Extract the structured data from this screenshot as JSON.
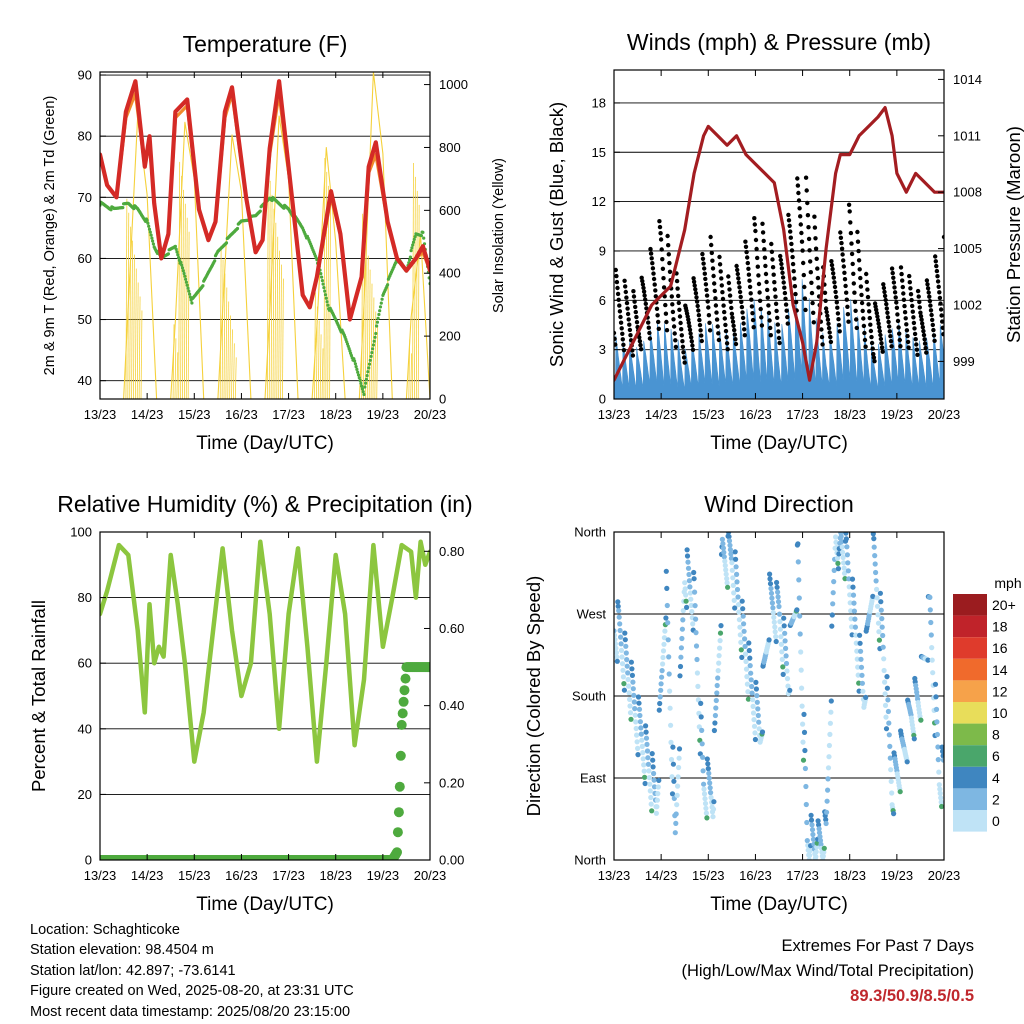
{
  "x_tick_labels": [
    "13/23",
    "14/23",
    "15/23",
    "16/23",
    "17/23",
    "18/23",
    "19/23",
    "20/23"
  ],
  "charts": {
    "temperature": {
      "title": "Temperature (F)",
      "xlabel": "Time (Day/UTC)",
      "ylabel_left": "2m & 9m T (Red, Orange) & 2m Td (Green)",
      "ylabel_right": "Solar Insolation (Yellow)",
      "yticks_left": [
        "40",
        "50",
        "60",
        "70",
        "80",
        "90"
      ],
      "yticks_right": [
        "0",
        "200",
        "400",
        "600",
        "800",
        "1000"
      ]
    },
    "winds": {
      "title": "Winds (mph) & Pressure (mb)",
      "xlabel": "Time (Day/UTC)",
      "ylabel_left": "Sonic Wind & Gust (Blue, Black)",
      "ylabel_right": "Station Pressure (Maroon)",
      "yticks_left": [
        "0",
        "3",
        "6",
        "9",
        "12",
        "15",
        "18"
      ],
      "yticks_right": [
        "999",
        "1002",
        "1005",
        "1008",
        "1011",
        "1014"
      ]
    },
    "humidity": {
      "title": "Relative Humidity (%) & Precipitation (in)",
      "xlabel": "Time (Day/UTC)",
      "ylabel_left": "Percent & Total Rainfall",
      "yticks_left": [
        "0",
        "20",
        "40",
        "60",
        "80",
        "100"
      ],
      "yticks_right": [
        "0.00",
        "0.20",
        "0.40",
        "0.60",
        "0.80"
      ]
    },
    "direction": {
      "title": "Wind Direction",
      "xlabel": "Time (Day/UTC)",
      "ylabel_left": "Direction (Colored By Speed)",
      "yticks_left": [
        "North",
        "East",
        "South",
        "West",
        "North"
      ],
      "legend_title": "mph",
      "legend_labels": [
        "20+",
        "18",
        "16",
        "14",
        "12",
        "10",
        "8",
        "6",
        "4",
        "2",
        "0"
      ],
      "legend_colors": [
        "#9b1c1f",
        "#c0232a",
        "#df3b2c",
        "#f06a2c",
        "#f6a24a",
        "#e8dd5a",
        "#7dba4a",
        "#4aa66b",
        "#3f86c0",
        "#7eb7e2",
        "#bfe3f6"
      ]
    }
  },
  "chart_data": [
    {
      "type": "line",
      "title": "Temperature (F)",
      "xlabel": "Time (Day/UTC)",
      "ylabel": "2m & 9m T (Red, Orange) & 2m Td (Green)",
      "y2label": "Solar Insolation (Yellow)",
      "x_unit": "days since 13/23",
      "ylim": [
        37,
        90.5
      ],
      "y2lim": [
        0,
        1040
      ],
      "series": [
        {
          "name": "2m T",
          "color": "#d42a26",
          "axis": "left",
          "x": [
            0,
            0.15,
            0.35,
            0.55,
            0.75,
            0.95,
            1.05,
            1.15,
            1.3,
            1.45,
            1.6,
            1.85,
            2.1,
            2.3,
            2.45,
            2.65,
            2.8,
            3.1,
            3.3,
            3.45,
            3.6,
            3.8,
            4.1,
            4.3,
            4.45,
            4.6,
            4.9,
            5.1,
            5.3,
            5.55,
            5.7,
            5.85,
            6.1,
            6.3,
            6.5,
            6.7,
            6.85,
            7.0
          ],
          "y": [
            77,
            72,
            70,
            84,
            89,
            75,
            80,
            69,
            60,
            64,
            84,
            86,
            68,
            63,
            66,
            84,
            88,
            70,
            61,
            63,
            78,
            89,
            68,
            54,
            52,
            57,
            71,
            64,
            50,
            57,
            75,
            79,
            66,
            60,
            58,
            60,
            62,
            58
          ]
        },
        {
          "name": "9m T",
          "color": "#f08a2c",
          "axis": "left",
          "x": [
            0,
            0.15,
            0.35,
            0.55,
            0.75,
            0.95,
            1.05,
            1.15,
            1.3,
            1.45,
            1.6,
            1.85,
            2.1,
            2.3,
            2.45,
            2.65,
            2.8,
            3.1,
            3.3,
            3.45,
            3.6,
            3.8,
            4.1,
            4.3,
            4.45,
            4.6,
            4.9,
            5.1,
            5.3,
            5.55,
            5.7,
            5.85,
            6.1,
            6.3,
            6.5,
            6.7,
            6.85,
            7.0
          ],
          "y": [
            77,
            72,
            70,
            83,
            87,
            75,
            79,
            69,
            60,
            64,
            83,
            85,
            68,
            63,
            66,
            83,
            87,
            70,
            61,
            63,
            77,
            87,
            68,
            54,
            52,
            57,
            70,
            64,
            50,
            57,
            74,
            77,
            66,
            60,
            58,
            60,
            61,
            58
          ]
        },
        {
          "name": "2m Td",
          "color": "#4eaa3e",
          "axis": "left",
          "x": [
            0,
            0.3,
            0.6,
            0.8,
            1.0,
            1.15,
            1.3,
            1.45,
            1.6,
            1.8,
            1.95,
            2.2,
            2.5,
            2.8,
            3.0,
            3.3,
            3.6,
            3.8,
            4.0,
            4.3,
            4.6,
            4.85,
            5.0,
            5.2,
            5.4,
            5.6,
            5.8,
            6.0,
            6.3,
            6.5,
            6.7,
            6.85,
            7.0
          ],
          "y": [
            69,
            68,
            69,
            68,
            66,
            62,
            60,
            61,
            62,
            57,
            53,
            56,
            61,
            64,
            66,
            67,
            70,
            69,
            68,
            65,
            60,
            52,
            50,
            47,
            43,
            38,
            46,
            54,
            60,
            58,
            64,
            64,
            56
          ]
        },
        {
          "name": "Solar Insolation",
          "color": "#f5d13b",
          "axis": "right",
          "x": [
            0.2,
            0.5,
            0.6,
            0.8,
            1.0,
            1.2,
            1.5,
            1.6,
            1.8,
            2.0,
            2.2,
            2.5,
            2.6,
            2.8,
            3.0,
            3.2,
            3.5,
            3.6,
            3.8,
            4.0,
            4.2,
            4.5,
            4.6,
            4.8,
            5.0,
            5.2,
            5.5,
            5.6,
            5.8,
            6.0,
            6.2,
            6.5,
            6.6,
            6.8,
            7.0
          ],
          "y": [
            0,
            0,
            300,
            900,
            650,
            0,
            0,
            250,
            880,
            700,
            0,
            0,
            280,
            840,
            660,
            0,
            0,
            270,
            900,
            700,
            0,
            0,
            230,
            800,
            500,
            0,
            0,
            300,
            1040,
            780,
            0,
            0,
            260,
            520,
            0
          ]
        }
      ]
    },
    {
      "type": "line",
      "title": "Winds (mph) & Pressure (mb)",
      "xlabel": "Time (Day/UTC)",
      "ylabel": "Sonic Wind & Gust (Blue, Black)",
      "y2label": "Station Pressure (Maroon)",
      "x_unit": "days since 13/23",
      "ylim": [
        0,
        20
      ],
      "y2lim": [
        997,
        1014.5
      ],
      "series": [
        {
          "name": "Sonic Wind",
          "color": "#4a94d2",
          "axis": "left",
          "x": [
            0,
            0.5,
            1.0,
            1.5,
            2.0,
            2.5,
            3.0,
            3.5,
            4.0,
            4.5,
            5.0,
            5.5,
            6.0,
            6.5,
            7.0
          ],
          "y": [
            2.5,
            2.0,
            3.2,
            2.0,
            3.0,
            2.5,
            4.0,
            2.8,
            4.6,
            2.2,
            4.0,
            2.0,
            3.0,
            2.2,
            3.0
          ]
        },
        {
          "name": "Gust",
          "color": "#000000",
          "axis": "left",
          "x": [
            0,
            0.5,
            1.0,
            1.5,
            2.0,
            2.5,
            3.0,
            3.5,
            4.0,
            4.5,
            5.0,
            5.5,
            6.0,
            6.5,
            7.0
          ],
          "y": [
            5.5,
            4.5,
            8.0,
            4.0,
            7.0,
            5.0,
            8.0,
            6.0,
            10.5,
            5.0,
            8.5,
            4.0,
            6.0,
            4.5,
            7.0
          ]
        },
        {
          "name": "Station Pressure",
          "color": "#a31d21",
          "axis": "right",
          "x": [
            0,
            0.2,
            0.4,
            0.6,
            0.8,
            1.0,
            1.2,
            1.5,
            1.7,
            1.9,
            2.0,
            2.2,
            2.4,
            2.6,
            2.8,
            3.0,
            3.2,
            3.4,
            3.6,
            3.8,
            4.0,
            4.15,
            4.3,
            4.5,
            4.7,
            4.8,
            5.0,
            5.2,
            5.4,
            5.6,
            5.75,
            5.9,
            6.0,
            6.2,
            6.4,
            6.6,
            6.8,
            7.0
          ],
          "y": [
            998,
            999,
            1000,
            1001,
            1002,
            1002.5,
            1003,
            1006,
            1009,
            1011,
            1011.5,
            1011,
            1010.5,
            1011,
            1010,
            1009.5,
            1009,
            1008.5,
            1006,
            1002,
            1000,
            998,
            1000,
            1005,
            1009,
            1010,
            1010,
            1011,
            1011.5,
            1012,
            1012.5,
            1011,
            1009,
            1008,
            1009,
            1008.5,
            1008,
            1008
          ]
        }
      ]
    },
    {
      "type": "line",
      "title": "Relative Humidity (%) & Precipitation (in)",
      "xlabel": "Time (Day/UTC)",
      "ylabel": "Percent & Total Rainfall",
      "x_unit": "days since 13/23",
      "ylim": [
        0,
        100
      ],
      "y2lim": [
        0,
        0.85
      ],
      "series": [
        {
          "name": "Relative Humidity",
          "color": "#8cc63f",
          "axis": "left",
          "x": [
            0,
            0.15,
            0.4,
            0.6,
            0.8,
            0.95,
            1.05,
            1.15,
            1.25,
            1.35,
            1.5,
            1.65,
            1.8,
            2.0,
            2.2,
            2.4,
            2.6,
            2.8,
            3.0,
            3.2,
            3.4,
            3.6,
            3.8,
            4.0,
            4.2,
            4.4,
            4.6,
            4.8,
            5.0,
            5.2,
            5.4,
            5.6,
            5.8,
            6.0,
            6.2,
            6.4,
            6.6,
            6.7,
            6.8,
            6.9,
            7.0
          ],
          "y": [
            75,
            82,
            96,
            93,
            70,
            45,
            78,
            60,
            65,
            62,
            93,
            78,
            60,
            30,
            45,
            70,
            95,
            70,
            50,
            60,
            97,
            75,
            40,
            75,
            95,
            65,
            30,
            60,
            93,
            75,
            35,
            55,
            96,
            65,
            80,
            96,
            94,
            80,
            97,
            90,
            94
          ]
        },
        {
          "name": "Total Precipitation",
          "color": "#4eaa3e",
          "axis": "right",
          "x": [
            0,
            6.0,
            6.2,
            6.3,
            6.35,
            6.4,
            6.5,
            7.0
          ],
          "y": [
            0,
            0,
            0,
            0.02,
            0.15,
            0.35,
            0.5,
            0.5
          ]
        }
      ]
    },
    {
      "type": "scatter",
      "title": "Wind Direction",
      "xlabel": "Time (Day/UTC)",
      "ylabel": "Direction (Colored By Speed)",
      "x_unit": "days since 13/23",
      "y_categories": [
        "North",
        "East",
        "South",
        "West",
        "North"
      ],
      "ylim": [
        0,
        360
      ],
      "color_legend_title": "mph",
      "series": [
        {
          "name": "Direction",
          "color": "#7eb7e2",
          "x": [
            0.1,
            0.3,
            0.5,
            0.7,
            0.9,
            1.1,
            1.3,
            1.5,
            1.7,
            1.9,
            2.1,
            2.3,
            2.5,
            2.7,
            2.9,
            3.1,
            3.3,
            3.5,
            3.7,
            3.9,
            4.1,
            4.3,
            4.5,
            4.7,
            4.9,
            5.1,
            5.3,
            5.5,
            5.7,
            5.9,
            6.1,
            6.3,
            6.5,
            6.7,
            6.9
          ],
          "y": [
            250,
            200,
            150,
            110,
            60,
            300,
            20,
            320,
            280,
            80,
            70,
            330,
            330,
            260,
            190,
            140,
            280,
            270,
            200,
            320,
            20,
            10,
            20,
            360,
            340,
            260,
            180,
            330,
            240,
            80,
            110,
            160,
            180,
            270,
            90
          ]
        }
      ]
    }
  ],
  "meta": {
    "location": "Location: Schaghticoke",
    "elevation": "Station elevation: 98.4504 m",
    "latlon": "Station lat/lon: 42.897; -73.6141",
    "created": "Figure created on Wed, 2025-08-20, at 23:31 UTC",
    "recent": "Most recent data timestamp: 2025/08/20 23:15:00"
  },
  "extremes": {
    "heading": "Extremes For Past 7 Days",
    "subheading": "(High/Low/Max Wind/Total Precipitation)",
    "values": "89.3/50.9/8.5/0.5"
  }
}
